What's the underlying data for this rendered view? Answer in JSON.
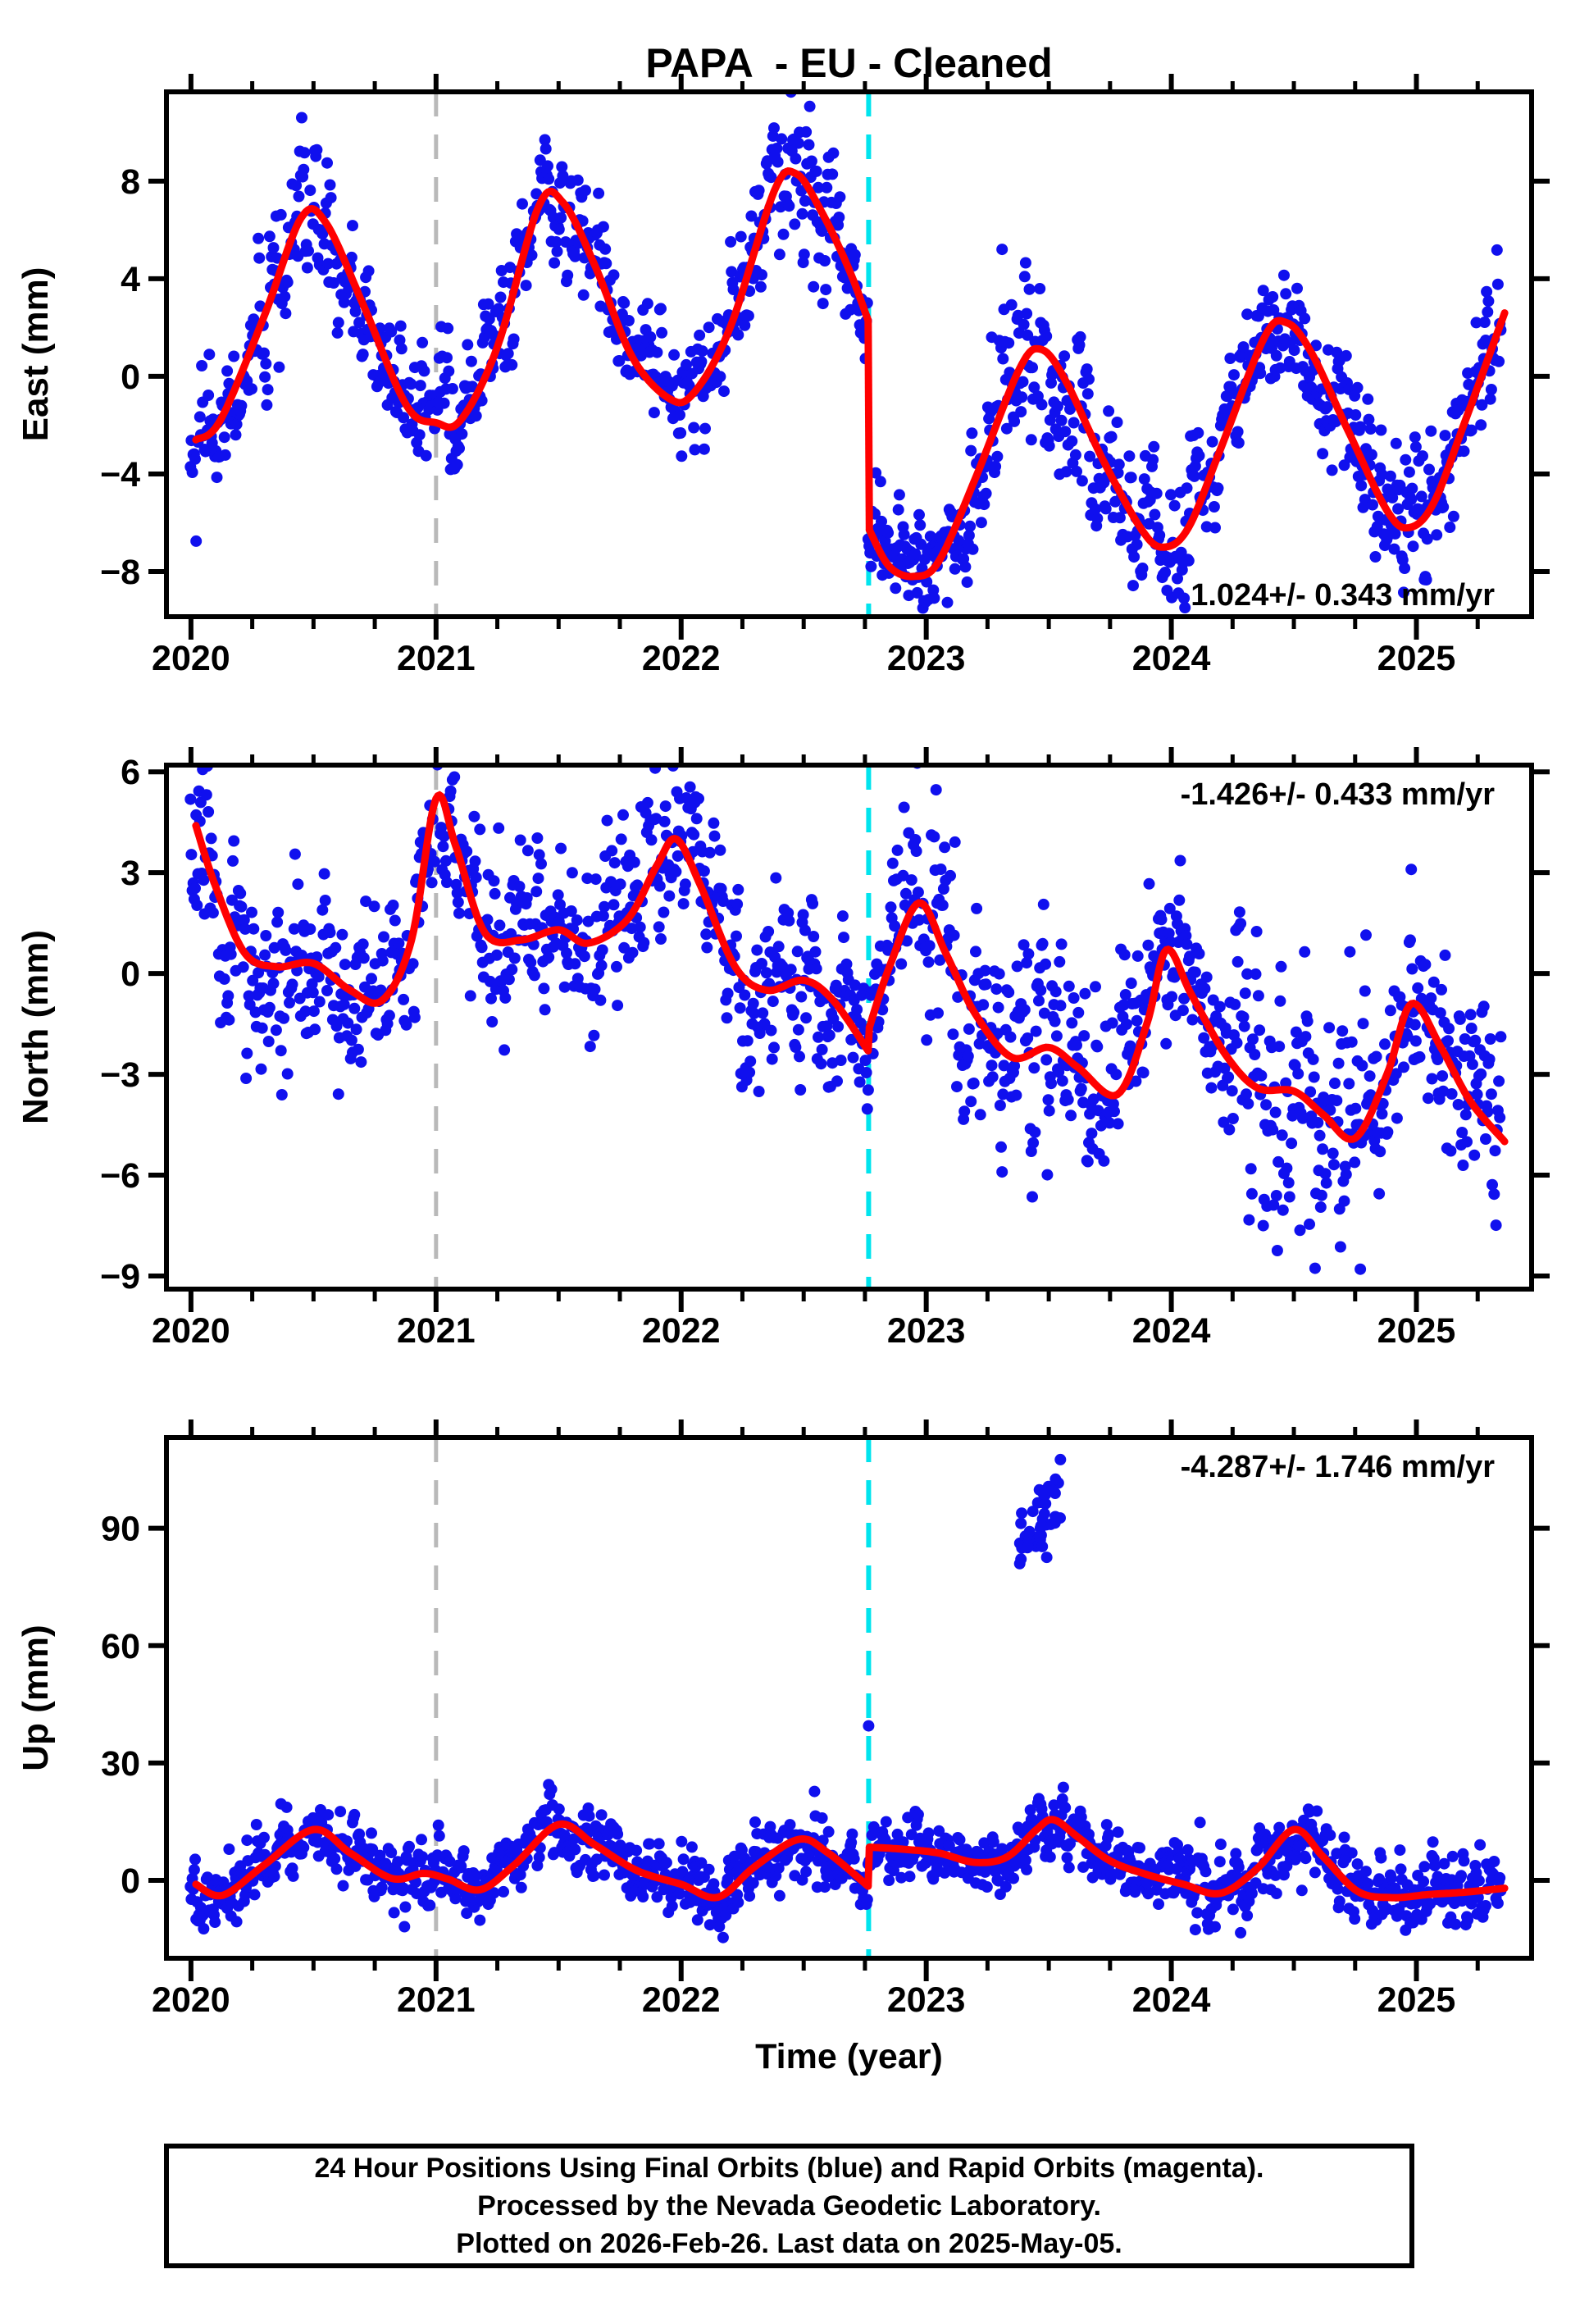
{
  "title": "PAPA  - EU - Cleaned",
  "caption": {
    "line1": "24 Hour Positions Using Final Orbits (blue) and Rapid Orbits (magenta).",
    "line2": "Processed by the Nevada Geodetic Laboratory.",
    "line3": "Plotted on 2026-Feb-26. Last data on 2025-May-05."
  },
  "chart_data": {
    "type": "scatter",
    "title": "PAPA  - EU - Cleaned",
    "xlabel": "Time (year)",
    "xlim": [
      2019.9,
      2025.47
    ],
    "x_major_ticks": [
      2020,
      2021,
      2022,
      2023,
      2024,
      2025
    ],
    "x_minor_step": 0.25,
    "data_end": 2025.345,
    "colors": {
      "points": "#1010ee",
      "model": "#ff0000",
      "event_gray": "#b9b9b9",
      "event_cyan": "#00e4ee",
      "frame": "#000000"
    },
    "event_lines": [
      {
        "name": "gray-event-line",
        "x": 2021.0,
        "color_key": "event_gray"
      },
      {
        "name": "cyan-event-line",
        "x": 2022.765,
        "color_key": "event_cyan"
      }
    ],
    "panels": [
      {
        "name": "east",
        "ylabel": "East (mm)",
        "ylim": [
          -9.85,
          11.66
        ],
        "yticks": [
          8,
          4,
          0,
          -4,
          -8
        ],
        "rate_annotation": "1.024+/- 0.343 mm/yr",
        "annotation_corner": "bottom-right",
        "model_segments": [
          [
            [
              2020.02,
              -2.6
            ],
            [
              2020.12,
              -1.8
            ],
            [
              2020.3,
              2.5
            ],
            [
              2020.45,
              6.5
            ],
            [
              2020.55,
              6.3
            ],
            [
              2020.7,
              3.0
            ],
            [
              2020.88,
              -1.2
            ],
            [
              2021.0,
              -1.9
            ],
            [
              2021.1,
              -1.8
            ],
            [
              2021.25,
              1.2
            ],
            [
              2021.42,
              7.0
            ],
            [
              2021.52,
              7.1
            ],
            [
              2021.65,
              4.5
            ],
            [
              2021.8,
              0.8
            ],
            [
              2021.95,
              -0.9
            ],
            [
              2022.05,
              -0.7
            ],
            [
              2022.2,
              2.0
            ],
            [
              2022.38,
              7.6
            ],
            [
              2022.47,
              8.3
            ],
            [
              2022.57,
              6.8
            ],
            [
              2022.68,
              4.5
            ],
            [
              2022.763,
              2.3
            ]
          ],
          [
            [
              2022.768,
              -6.3
            ],
            [
              2022.85,
              -7.8
            ],
            [
              2022.95,
              -8.2
            ],
            [
              2023.05,
              -7.6
            ],
            [
              2023.2,
              -4.2
            ],
            [
              2023.38,
              0.3
            ],
            [
              2023.47,
              1.1
            ],
            [
              2023.57,
              -0.2
            ],
            [
              2023.72,
              -3.4
            ],
            [
              2023.88,
              -6.3
            ],
            [
              2023.97,
              -7.0
            ],
            [
              2024.07,
              -6.2
            ],
            [
              2024.2,
              -3.0
            ],
            [
              2024.38,
              1.6
            ],
            [
              2024.47,
              2.2
            ],
            [
              2024.57,
              1.0
            ],
            [
              2024.72,
              -2.2
            ],
            [
              2024.88,
              -5.5
            ],
            [
              2024.97,
              -6.2
            ],
            [
              2025.07,
              -5.2
            ],
            [
              2025.2,
              -1.8
            ],
            [
              2025.36,
              2.6
            ]
          ]
        ],
        "scatter": {
          "points_per_year": 260,
          "seed": 42,
          "noise_sd": 1.3,
          "noise_windows": [
            [
              2020.25,
              2020.6,
              1.7
            ],
            [
              2022.3,
              2022.6,
              1.6
            ],
            [
              2023.25,
              2023.7,
              2.0
            ],
            [
              2023.85,
              2024.15,
              1.7
            ],
            [
              2024.6,
              2025.0,
              1.6
            ]
          ]
        }
      },
      {
        "name": "north",
        "ylabel": "North (mm)",
        "ylim": [
          -9.39,
          6.2
        ],
        "yticks": [
          6,
          3,
          0,
          -3,
          -6,
          -9
        ],
        "rate_annotation": "-1.426+/- 0.433 mm/yr",
        "annotation_corner": "top-right",
        "model_segments": [
          [
            [
              2020.02,
              4.4
            ],
            [
              2020.1,
              2.6
            ],
            [
              2020.22,
              0.6
            ],
            [
              2020.35,
              0.2
            ],
            [
              2020.5,
              0.3
            ],
            [
              2020.65,
              -0.5
            ],
            [
              2020.78,
              -0.8
            ],
            [
              2020.9,
              1.0
            ],
            [
              2021.0,
              5.2
            ],
            [
              2021.08,
              3.8
            ],
            [
              2021.2,
              1.2
            ],
            [
              2021.35,
              1.0
            ],
            [
              2021.5,
              1.3
            ],
            [
              2021.62,
              0.9
            ],
            [
              2021.78,
              1.6
            ],
            [
              2021.9,
              3.2
            ],
            [
              2021.98,
              4.0
            ],
            [
              2022.08,
              2.6
            ],
            [
              2022.22,
              0.2
            ],
            [
              2022.35,
              -0.5
            ],
            [
              2022.5,
              -0.2
            ],
            [
              2022.62,
              -0.8
            ],
            [
              2022.763,
              -2.3
            ]
          ],
          [
            [
              2022.768,
              -1.6
            ],
            [
              2022.85,
              0.2
            ],
            [
              2022.97,
              2.1
            ],
            [
              2023.08,
              0.6
            ],
            [
              2023.2,
              -1.2
            ],
            [
              2023.35,
              -2.5
            ],
            [
              2023.5,
              -2.2
            ],
            [
              2023.62,
              -2.8
            ],
            [
              2023.78,
              -3.6
            ],
            [
              2023.9,
              -1.5
            ],
            [
              2023.98,
              0.7
            ],
            [
              2024.08,
              -0.6
            ],
            [
              2024.22,
              -2.4
            ],
            [
              2024.35,
              -3.4
            ],
            [
              2024.5,
              -3.5
            ],
            [
              2024.62,
              -4.2
            ],
            [
              2024.75,
              -4.9
            ],
            [
              2024.88,
              -3.0
            ],
            [
              2024.98,
              -0.9
            ],
            [
              2025.1,
              -2.2
            ],
            [
              2025.22,
              -3.8
            ],
            [
              2025.36,
              -5.0
            ]
          ]
        ],
        "scatter": {
          "points_per_year": 260,
          "seed": 1337,
          "noise_sd": 1.3,
          "noise_windows": [
            [
              2020.0,
              2020.6,
              1.6
            ],
            [
              2022.85,
              2023.1,
              1.8
            ],
            [
              2023.3,
              2023.6,
              1.8
            ],
            [
              2024.25,
              2024.85,
              2.2
            ],
            [
              2025.0,
              2025.37,
              1.7
            ]
          ]
        }
      },
      {
        "name": "up",
        "ylabel": "Up (mm)",
        "ylim": [
          -19.9,
          113.2
        ],
        "yticks": [
          90,
          60,
          30,
          0
        ],
        "rate_annotation": "-4.287+/- 1.746 mm/yr",
        "annotation_corner": "top-right",
        "model_segments": [
          [
            [
              2020.02,
              -1.0
            ],
            [
              2020.13,
              -3.8
            ],
            [
              2020.3,
              4.0
            ],
            [
              2020.5,
              13.0
            ],
            [
              2020.65,
              7.0
            ],
            [
              2020.82,
              0.5
            ],
            [
              2020.95,
              1.8
            ],
            [
              2021.05,
              0.3
            ],
            [
              2021.18,
              -2.4
            ],
            [
              2021.32,
              4.0
            ],
            [
              2021.5,
              14.3
            ],
            [
              2021.65,
              9.0
            ],
            [
              2021.82,
              2.5
            ],
            [
              2022.0,
              -1.0
            ],
            [
              2022.15,
              -4.3
            ],
            [
              2022.3,
              3.5
            ],
            [
              2022.48,
              10.5
            ],
            [
              2022.6,
              7.0
            ],
            [
              2022.763,
              -1.5
            ]
          ],
          [
            [
              2022.768,
              8.5
            ],
            [
              2022.9,
              8.0
            ],
            [
              2023.05,
              7.0
            ],
            [
              2023.2,
              4.6
            ],
            [
              2023.33,
              6.0
            ],
            [
              2023.45,
              13.0
            ],
            [
              2023.52,
              15.5
            ],
            [
              2023.62,
              11.0
            ],
            [
              2023.75,
              5.0
            ],
            [
              2023.9,
              1.5
            ],
            [
              2024.05,
              -1.0
            ],
            [
              2024.2,
              -3.3
            ],
            [
              2024.35,
              3.0
            ],
            [
              2024.5,
              13.0
            ],
            [
              2024.62,
              6.0
            ],
            [
              2024.76,
              -2.8
            ],
            [
              2024.9,
              -4.4
            ],
            [
              2025.05,
              -3.6
            ],
            [
              2025.2,
              -3.0
            ],
            [
              2025.36,
              -2.0
            ]
          ]
        ],
        "scatter": {
          "points_per_year": 260,
          "seed": 2024,
          "noise_sd": 4.2,
          "noise_windows": [
            [
              2020.0,
              2020.3,
              4.6
            ],
            [
              2023.85,
              2024.6,
              5.4
            ],
            [
              2024.75,
              2025.37,
              4.6
            ]
          ]
        },
        "outlier_cluster": {
          "t_range": [
            2023.38,
            2023.56
          ],
          "n": 46,
          "base": 84,
          "slope_per_year": 90,
          "sd": 5,
          "value_range": [
            77,
            113
          ],
          "seed": 77
        },
        "isolated_outliers": [
          [
            2022.765,
            39.5
          ]
        ]
      }
    ]
  }
}
